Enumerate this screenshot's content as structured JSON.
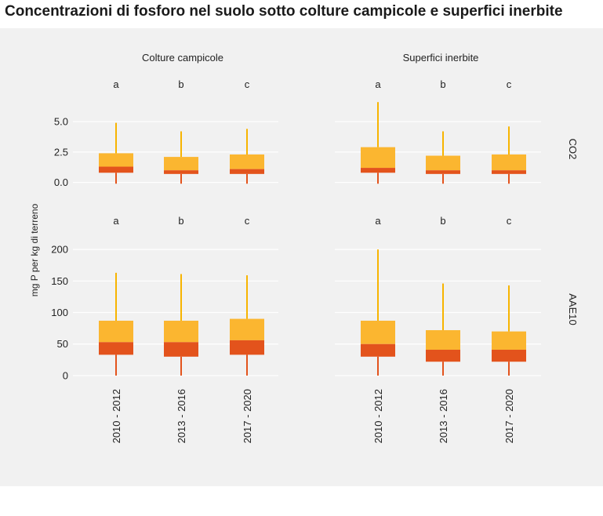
{
  "title": "Concentrazioni di fosforo nel suolo sotto colture campicole e superfici inerbite",
  "chart_data": {
    "type": "boxplot",
    "ylabel": "mg P per kg di terreno",
    "columns": [
      "Colture campicole",
      "Superfici inerbite"
    ],
    "rows": [
      {
        "name": "CO2",
        "ylim": [
          -1.5,
          7
        ],
        "yticks": [
          0.0,
          2.5,
          5.0
        ],
        "ytick_labels": [
          "0.0",
          "2.5",
          "5.0"
        ],
        "letters": [
          "a",
          "b",
          "c"
        ]
      },
      {
        "name": "AAE10",
        "ylim": [
          -15,
          225
        ],
        "yticks": [
          0,
          50,
          100,
          150,
          200
        ],
        "ytick_labels": [
          "0",
          "50",
          "100",
          "150",
          "200"
        ],
        "letters": [
          "a",
          "b",
          "c"
        ]
      }
    ],
    "categories": [
      "2010 - 2012",
      "2013 - 2016",
      "2017 - 2020"
    ],
    "colors": {
      "upper": "#fbb630",
      "lower": "#e3531c",
      "whisker_up": "#f7b400",
      "whisker_low": "#e3531c"
    },
    "boxes": [
      {
        "row": "CO2",
        "column": "Colture campicole",
        "category": "2010 - 2012",
        "min": -0.1,
        "q1": 0.8,
        "median": 1.3,
        "q3": 2.4,
        "max": 4.9
      },
      {
        "row": "CO2",
        "column": "Colture campicole",
        "category": "2013 - 2016",
        "min": -0.1,
        "q1": 0.7,
        "median": 1.0,
        "q3": 2.1,
        "max": 4.2
      },
      {
        "row": "CO2",
        "column": "Colture campicole",
        "category": "2017 - 2020",
        "min": -0.1,
        "q1": 0.7,
        "median": 1.1,
        "q3": 2.3,
        "max": 4.4
      },
      {
        "row": "CO2",
        "column": "Superfici inerbite",
        "category": "2010 - 2012",
        "min": -0.1,
        "q1": 0.8,
        "median": 1.2,
        "q3": 2.9,
        "max": 6.6
      },
      {
        "row": "CO2",
        "column": "Superfici inerbite",
        "category": "2013 - 2016",
        "min": -0.1,
        "q1": 0.7,
        "median": 1.0,
        "q3": 2.2,
        "max": 4.2
      },
      {
        "row": "CO2",
        "column": "Superfici inerbite",
        "category": "2017 - 2020",
        "min": -0.1,
        "q1": 0.7,
        "median": 1.0,
        "q3": 2.3,
        "max": 4.6
      },
      {
        "row": "AAE10",
        "column": "Colture campicole",
        "category": "2010 - 2012",
        "min": 0,
        "q1": 33,
        "median": 53,
        "q3": 87,
        "max": 163
      },
      {
        "row": "AAE10",
        "column": "Colture campicole",
        "category": "2013 - 2016",
        "min": 0,
        "q1": 30,
        "median": 53,
        "q3": 87,
        "max": 161
      },
      {
        "row": "AAE10",
        "column": "Colture campicole",
        "category": "2017 - 2020",
        "min": 0,
        "q1": 33,
        "median": 56,
        "q3": 90,
        "max": 159
      },
      {
        "row": "AAE10",
        "column": "Superfici inerbite",
        "category": "2010 - 2012",
        "min": 0,
        "q1": 30,
        "median": 50,
        "q3": 87,
        "max": 200
      },
      {
        "row": "AAE10",
        "column": "Superfici inerbite",
        "category": "2013 - 2016",
        "min": 0,
        "q1": 22,
        "median": 41,
        "q3": 72,
        "max": 146
      },
      {
        "row": "AAE10",
        "column": "Superfici inerbite",
        "category": "2017 - 2020",
        "min": 0,
        "q1": 22,
        "median": 41,
        "q3": 70,
        "max": 143
      }
    ]
  }
}
